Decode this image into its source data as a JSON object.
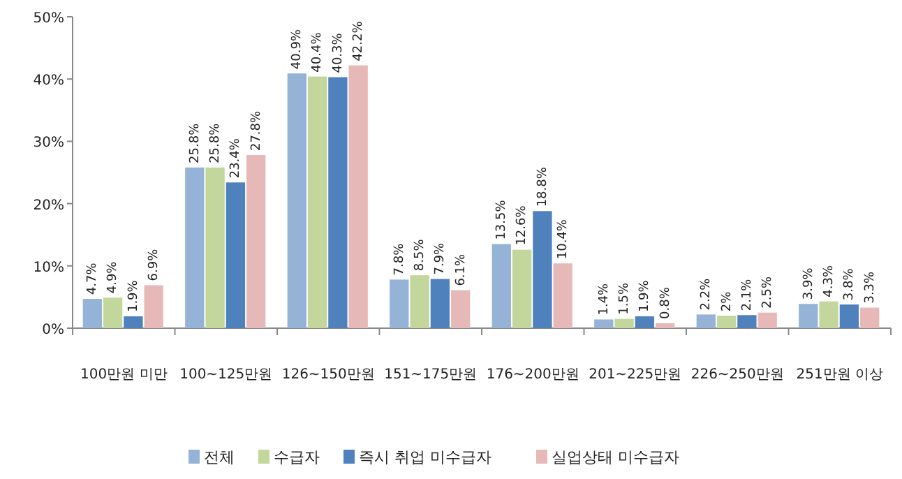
{
  "chart_data": {
    "type": "bar",
    "categories": [
      "100만원 미만",
      "100~125만원",
      "126~150만원",
      "151~175만원",
      "176~200만원",
      "201~225만원",
      "226~250만원",
      "251만원 이상"
    ],
    "series": [
      {
        "name": "전체",
        "color": "#95b3d7",
        "values": [
          4.7,
          25.8,
          40.9,
          7.8,
          13.5,
          1.4,
          2.2,
          3.9
        ],
        "value_labels": [
          "4.7%",
          "25.8%",
          "40.9%",
          "7.8%",
          "13.5%",
          "1.4%",
          "2.2%",
          "3.9%"
        ]
      },
      {
        "name": "수급자",
        "color": "#c3d69b",
        "values": [
          4.9,
          25.8,
          40.4,
          8.5,
          12.6,
          1.5,
          2,
          4.3
        ],
        "value_labels": [
          "4.9%",
          "25.8%",
          "40.4%",
          "8.5%",
          "12.6%",
          "1.5%",
          "2%",
          "4.3%"
        ]
      },
      {
        "name": "즉시 취업 미수급자",
        "color": "#4f81bd",
        "values": [
          1.9,
          23.4,
          40.3,
          7.9,
          18.8,
          1.9,
          2.1,
          3.8
        ],
        "value_labels": [
          "1.9%",
          "23.4%",
          "40.3%",
          "7.9%",
          "18.8%",
          "1.9%",
          "2.1%",
          "3.8%"
        ]
      },
      {
        "name": "실업상태 미수급자",
        "color": "#e6b9b8",
        "values": [
          6.9,
          27.8,
          42.2,
          6.1,
          10.4,
          0.8,
          2.5,
          3.3
        ],
        "value_labels": [
          "6.9%",
          "27.8%",
          "42.2%",
          "6.1%",
          "10.4%",
          "0.8%",
          "2.5%",
          "3.3%"
        ]
      }
    ],
    "ylim": [
      0,
      50
    ],
    "yticks": [
      {
        "value": 0,
        "label": "0%"
      },
      {
        "value": 10,
        "label": "10%"
      },
      {
        "value": 20,
        "label": "20%"
      },
      {
        "value": 30,
        "label": "30%"
      },
      {
        "value": 40,
        "label": "40%"
      },
      {
        "value": 50,
        "label": "50%"
      }
    ],
    "legend": "bottom",
    "grid": false
  }
}
